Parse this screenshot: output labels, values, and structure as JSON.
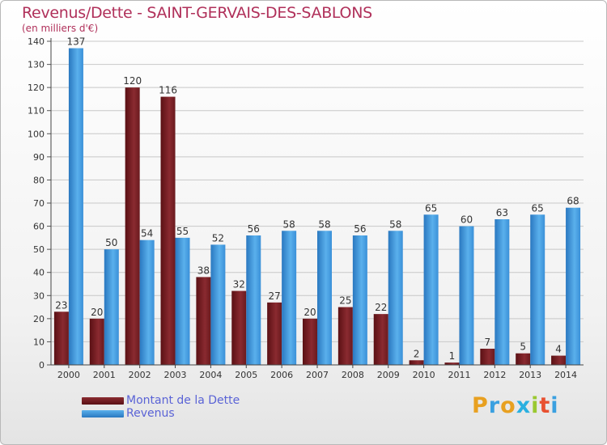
{
  "header": {
    "title": "Revenus/Dette - SAINT-GERVAIS-DES-SABLONS",
    "subtitle": "(en milliers d'€)"
  },
  "chart_data": {
    "type": "bar",
    "categories": [
      "2000",
      "2001",
      "2002",
      "2003",
      "2004",
      "2005",
      "2006",
      "2007",
      "2008",
      "2009",
      "2010",
      "2011",
      "2012",
      "2013",
      "2014"
    ],
    "series": [
      {
        "name": "Montant de la Dette",
        "color": "#7a1e22",
        "values": [
          23,
          20,
          120,
          116,
          38,
          32,
          27,
          20,
          25,
          22,
          2,
          1,
          7,
          5,
          4
        ]
      },
      {
        "name": "Revenus",
        "color": "#3a8fd9",
        "values": [
          137,
          50,
          54,
          55,
          52,
          56,
          58,
          58,
          56,
          58,
          65,
          60,
          63,
          65,
          68
        ]
      }
    ],
    "ylim": [
      0,
      140
    ],
    "yticks": [
      0,
      10,
      20,
      30,
      40,
      50,
      60,
      70,
      80,
      90,
      100,
      110,
      120,
      130,
      140
    ],
    "grid": true,
    "legend_position": "bottom-left"
  },
  "logo": {
    "letters": [
      "P",
      "r",
      "o",
      "x",
      "i",
      "t",
      "i"
    ],
    "colors": [
      "#e8a020",
      "#3aa0e0",
      "#e8a020",
      "#2ab0e0",
      "#9ac830",
      "#e85030",
      "#3aa0e0"
    ]
  }
}
